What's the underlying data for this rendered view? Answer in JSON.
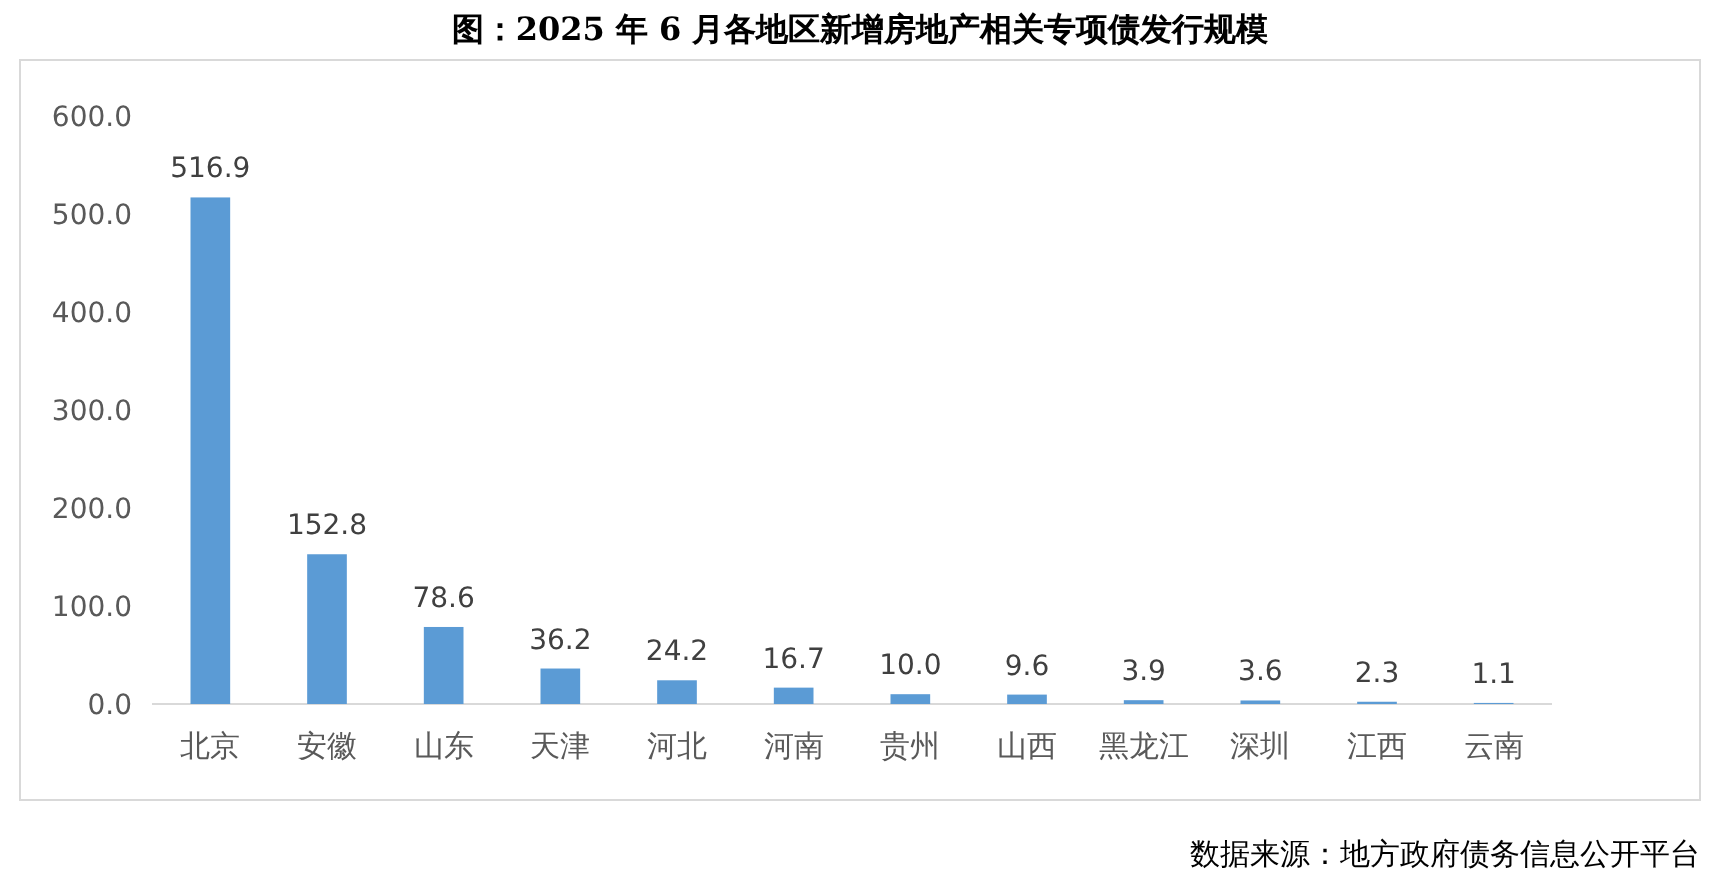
{
  "chart_data": {
    "type": "bar",
    "title": "图：2025 年 6 月各地区新增房地产相关专项债发行规模",
    "categories": [
      "北京",
      "安徽",
      "山东",
      "天津",
      "河北",
      "河南",
      "贵州",
      "山西",
      "黑龙江",
      "深圳",
      "江西",
      "云南"
    ],
    "values": [
      516.9,
      152.8,
      78.6,
      36.2,
      24.2,
      16.7,
      10.0,
      9.6,
      3.9,
      3.6,
      2.3,
      1.1
    ],
    "value_labels": [
      "516.9",
      "152.8",
      "78.6",
      "36.2",
      "24.2",
      "16.7",
      "10.0",
      "9.6",
      "3.9",
      "3.6",
      "2.3",
      "1.1"
    ],
    "color": "#5b9bd5",
    "ylim": [
      0,
      600
    ],
    "yticks": [
      {
        "value": 0,
        "label": "0.0"
      },
      {
        "value": 100,
        "label": "100.0"
      },
      {
        "value": 200,
        "label": "200.0"
      },
      {
        "value": 300,
        "label": "300.0"
      },
      {
        "value": 400,
        "label": "400.0"
      },
      {
        "value": 500,
        "label": "500.0"
      },
      {
        "value": 600,
        "label": "600.0"
      }
    ],
    "grid": false,
    "annotations": [
      "数据来源：地方政府债务信息公开平台"
    ]
  }
}
